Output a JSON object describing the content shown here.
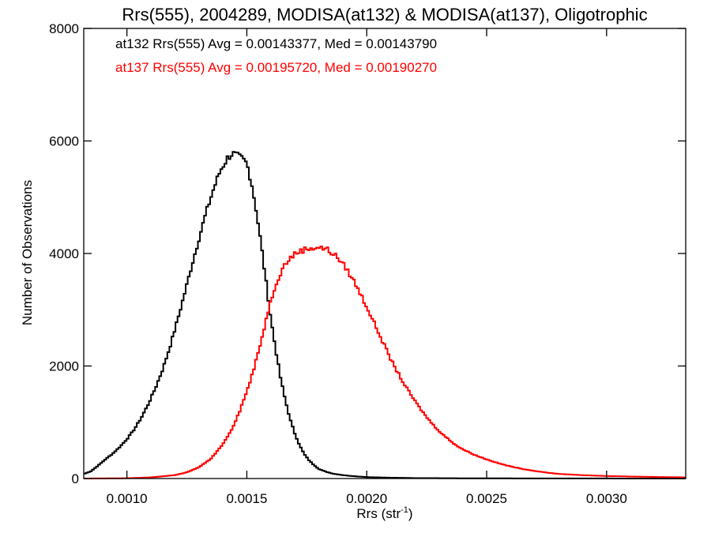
{
  "chart_data": {
    "type": "line",
    "title": "Rrs(555), 2004289, MODISA(at132) & MODISA(at137), Oligotrophic",
    "xlabel_main": "Rrs (str",
    "xlabel_sup": "-1",
    "xlabel_end": ")",
    "ylabel": "Number of Observations",
    "xlim": [
      0.00082,
      0.00333
    ],
    "ylim": [
      0,
      8000
    ],
    "x_ticks": [
      0.001,
      0.0015,
      0.002,
      0.0025,
      0.003
    ],
    "x_tick_labels": [
      "0.0010",
      "0.0015",
      "0.0020",
      "0.0025",
      "0.0030"
    ],
    "y_ticks": [
      0,
      2000,
      4000,
      6000,
      8000
    ],
    "y_tick_labels": [
      "0",
      "2000",
      "4000",
      "6000",
      "8000"
    ],
    "grid": false,
    "legend": [
      {
        "text": "at132 Rrs(555) Avg = 0.00143377, Med = 0.00143790",
        "color": "#000000"
      },
      {
        "text": "at137 Rrs(555) Avg = 0.00195720, Med = 0.00190270",
        "color": "#ff0000"
      }
    ],
    "series": [
      {
        "color": "#000000",
        "style": "step",
        "points": [
          [
            0.00082,
            80
          ],
          [
            0.00085,
            130
          ],
          [
            0.00088,
            230
          ],
          [
            0.00091,
            340
          ],
          [
            0.00094,
            440
          ],
          [
            0.00097,
            560
          ],
          [
            0.001,
            700
          ],
          [
            0.00103,
            870
          ],
          [
            0.00106,
            1080
          ],
          [
            0.00109,
            1330
          ],
          [
            0.00112,
            1620
          ],
          [
            0.00115,
            1950
          ],
          [
            0.00118,
            2350
          ],
          [
            0.00121,
            2800
          ],
          [
            0.00124,
            3280
          ],
          [
            0.00127,
            3780
          ],
          [
            0.0013,
            4260
          ],
          [
            0.00133,
            4720
          ],
          [
            0.00136,
            5130
          ],
          [
            0.00139,
            5480
          ],
          [
            0.00142,
            5700
          ],
          [
            0.00144,
            5780
          ],
          [
            0.00146,
            5730
          ],
          [
            0.00148,
            5680
          ],
          [
            0.0015,
            5600
          ],
          [
            0.00152,
            5250
          ],
          [
            0.00154,
            4750
          ],
          [
            0.00156,
            4150
          ],
          [
            0.00158,
            3500
          ],
          [
            0.0016,
            2850
          ],
          [
            0.00162,
            2300
          ],
          [
            0.00164,
            1800
          ],
          [
            0.00166,
            1400
          ],
          [
            0.00168,
            1060
          ],
          [
            0.0017,
            800
          ],
          [
            0.00172,
            590
          ],
          [
            0.00174,
            430
          ],
          [
            0.00176,
            320
          ],
          [
            0.00178,
            240
          ],
          [
            0.0018,
            170
          ],
          [
            0.00183,
            120
          ],
          [
            0.00186,
            85
          ],
          [
            0.0019,
            60
          ],
          [
            0.00195,
            40
          ],
          [
            0.002,
            25
          ],
          [
            0.0021,
            15
          ],
          [
            0.0022,
            8
          ],
          [
            0.0024,
            4
          ],
          [
            0.0027,
            2
          ],
          [
            0.003,
            1
          ],
          [
            0.00333,
            0
          ]
        ]
      },
      {
        "color": "#ff0000",
        "style": "step",
        "points": [
          [
            0.00082,
            0
          ],
          [
            0.001,
            5
          ],
          [
            0.0011,
            20
          ],
          [
            0.0012,
            60
          ],
          [
            0.00125,
            110
          ],
          [
            0.0013,
            200
          ],
          [
            0.00135,
            350
          ],
          [
            0.00138,
            500
          ],
          [
            0.00141,
            680
          ],
          [
            0.00144,
            900
          ],
          [
            0.00147,
            1200
          ],
          [
            0.0015,
            1550
          ],
          [
            0.00153,
            1950
          ],
          [
            0.00156,
            2450
          ],
          [
            0.00159,
            3000
          ],
          [
            0.00162,
            3450
          ],
          [
            0.00165,
            3750
          ],
          [
            0.00168,
            3920
          ],
          [
            0.00171,
            4020
          ],
          [
            0.00174,
            4070
          ],
          [
            0.00177,
            4100
          ],
          [
            0.0018,
            4110
          ],
          [
            0.00183,
            4080
          ],
          [
            0.00186,
            4000
          ],
          [
            0.00189,
            3870
          ],
          [
            0.00192,
            3700
          ],
          [
            0.00195,
            3480
          ],
          [
            0.00198,
            3230
          ],
          [
            0.00201,
            2960
          ],
          [
            0.00204,
            2680
          ],
          [
            0.00207,
            2400
          ],
          [
            0.0021,
            2120
          ],
          [
            0.00213,
            1880
          ],
          [
            0.00216,
            1650
          ],
          [
            0.00219,
            1450
          ],
          [
            0.00222,
            1260
          ],
          [
            0.00225,
            1090
          ],
          [
            0.00228,
            940
          ],
          [
            0.00231,
            810
          ],
          [
            0.00234,
            700
          ],
          [
            0.00237,
            600
          ],
          [
            0.0024,
            520
          ],
          [
            0.00245,
            420
          ],
          [
            0.0025,
            340
          ],
          [
            0.00255,
            270
          ],
          [
            0.0026,
            215
          ],
          [
            0.00265,
            170
          ],
          [
            0.0027,
            135
          ],
          [
            0.00275,
            105
          ],
          [
            0.0028,
            82
          ],
          [
            0.0029,
            60
          ],
          [
            0.003,
            45
          ],
          [
            0.0031,
            35
          ],
          [
            0.0032,
            28
          ],
          [
            0.00333,
            20
          ]
        ]
      }
    ]
  }
}
